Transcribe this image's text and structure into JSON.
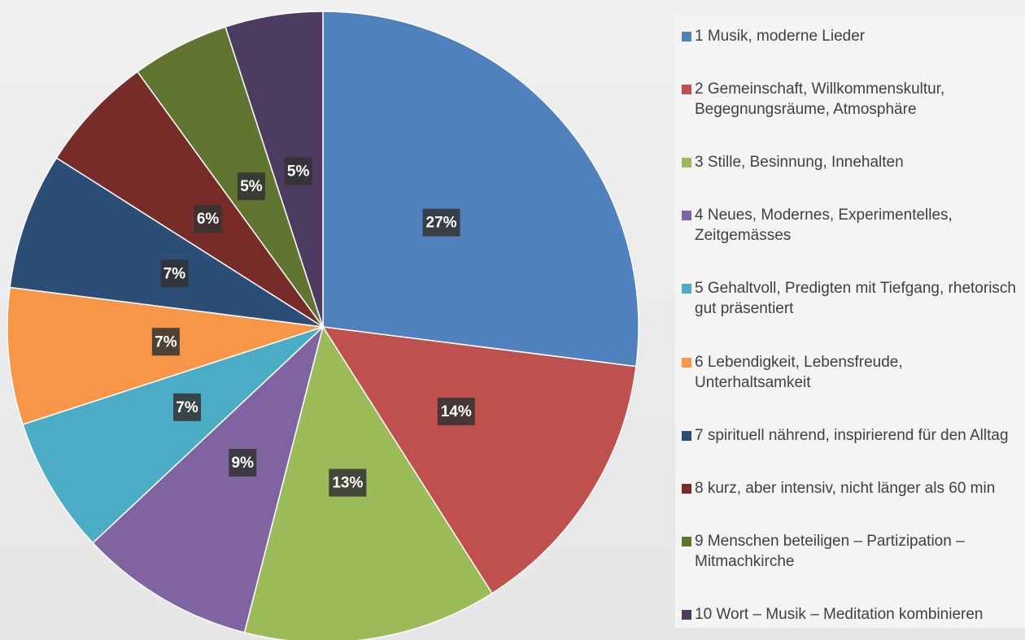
{
  "chart_data": {
    "type": "pie",
    "categories": [
      "1 Musik, moderne Lieder",
      "2 Gemeinschaft, Willkommenskultur, Begegnungsräume, Atmosphäre",
      "3 Stille, Besinnung, Innehalten",
      "4 Neues, Modernes, Experimentelles, Zeitgemässes",
      "5 Gehaltvoll, Predigten mit Tiefgang, rhetorisch gut präsentiert",
      "6 Lebendigkeit, Lebensfreude, Unterhaltsamkeit",
      "7 spirituell nährend, inspirierend für den Alltag",
      "8 kurz, aber intensiv, nicht länger als 60 min",
      "9 Menschen beteiligen – Partizipation – Mitmachkirche",
      "10 Wort – Musik – Meditation kombinieren"
    ],
    "values": [
      27,
      14,
      13,
      9,
      7,
      7,
      7,
      6,
      5,
      5
    ],
    "value_labels": [
      "27%",
      "14%",
      "13%",
      "9%",
      "7%",
      "7%",
      "7%",
      "6%",
      "5%",
      "5%"
    ],
    "colors": [
      "#4f81bd",
      "#c0504d",
      "#9bbb59",
      "#8064a2",
      "#4bacc6",
      "#f79646",
      "#2c4d75",
      "#772c2a",
      "#5f7530",
      "#4d3b62"
    ],
    "legend": "right"
  }
}
